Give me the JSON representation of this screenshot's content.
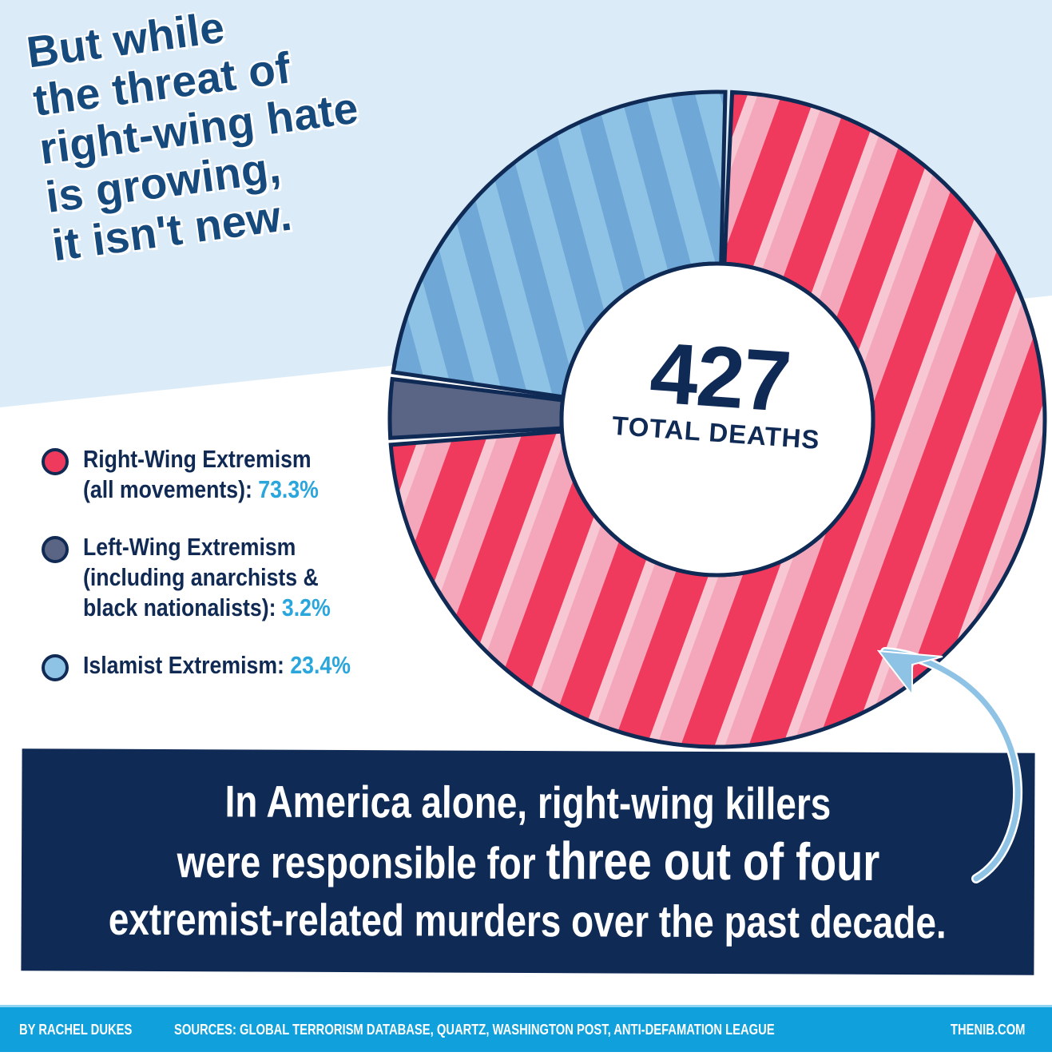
{
  "headline": {
    "lines": [
      "But while",
      "the threat of",
      "right-wing hate",
      "is growing,",
      "it isn't new."
    ]
  },
  "legend": {
    "items": [
      {
        "line1": "Right-Wing Extremism",
        "line2_prefix": "(all movements): ",
        "value": "73.3%",
        "color": "#ef3a5d"
      },
      {
        "line1": "Left-Wing Extremism",
        "line2_prefix": "(including anarchists &",
        "line3_prefix": "black nationalists): ",
        "value": "3.2%",
        "color": "#5a6585"
      },
      {
        "line1_prefix": "Islamist Extremism: ",
        "value": "23.4%",
        "color": "#8ec3e6"
      }
    ]
  },
  "center": {
    "total": "427",
    "caption": "TOTAL DEATHS"
  },
  "callout": {
    "line1": "In America alone, right-wing killers",
    "line2_prefix": "were responsible for ",
    "line2_emph": "three out of four",
    "line3": "extremist-related murders over the past decade."
  },
  "footer": {
    "byline": "BY RACHEL DUKES",
    "sources": "SOURCES: GLOBAL TERRORISM DATABASE, QUARTZ, WASHINGTON POST, ANTI-DEFAMATION LEAGUE",
    "site": "THENIB.COM"
  },
  "colors": {
    "navy": "#0f2a55",
    "headline_blue": "#174a7c",
    "accent_cyan": "#2aa6dc",
    "right_wing": "#ef3a5d",
    "left_wing": "#5a6585",
    "islamist": "#8ec3e6",
    "band_bg": "#dcebf8",
    "footer_bg": "#10a0dc"
  },
  "chart_data": {
    "type": "pie",
    "subtype": "donut",
    "title": "But while the threat of right-wing hate is growing, it isn't new.",
    "center_label": "427 TOTAL DEATHS",
    "total": 427,
    "categories": [
      "Right-Wing Extremism (all movements)",
      "Left-Wing Extremism (including anarchists & black nationalists)",
      "Islamist Extremism"
    ],
    "values": [
      73.3,
      3.2,
      23.4
    ],
    "unit": "%",
    "colors": [
      "#ef3a5d",
      "#5a6585",
      "#8ec3e6"
    ],
    "legend_position": "left"
  }
}
